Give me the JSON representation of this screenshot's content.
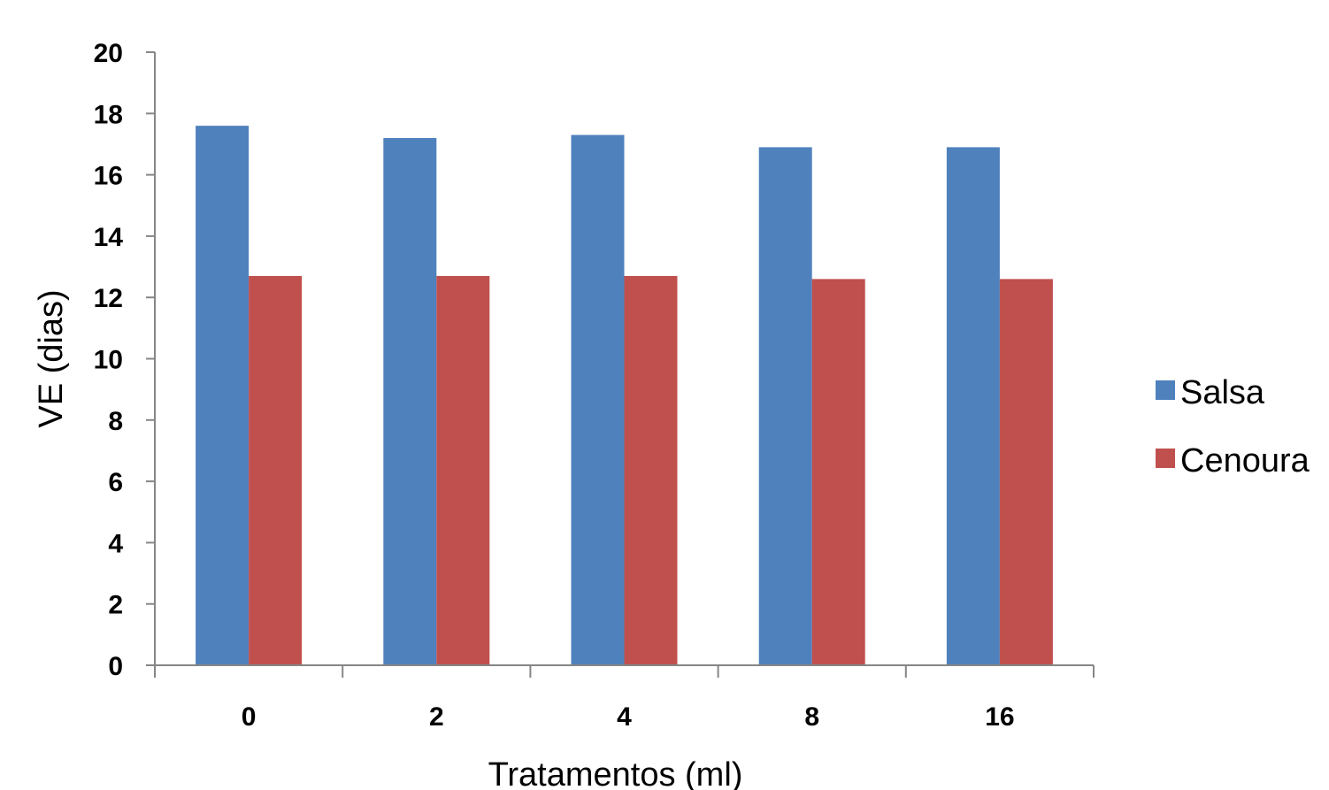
{
  "chart_data": {
    "type": "bar",
    "title": "",
    "xlabel": "Tratamentos  (ml)",
    "ylabel": "VE (dias)",
    "categories": [
      "0",
      "2",
      "4",
      "8",
      "16"
    ],
    "series": [
      {
        "name": "Salsa",
        "color": "#4F81BD",
        "values": [
          17.6,
          17.2,
          17.3,
          16.9,
          16.9
        ]
      },
      {
        "name": "Cenoura",
        "color": "#C0504D",
        "values": [
          12.7,
          12.7,
          12.7,
          12.6,
          12.6
        ]
      }
    ],
    "ylim": [
      0,
      20
    ],
    "yticks": [
      "0",
      "2",
      "4",
      "6",
      "8",
      "10",
      "12",
      "14",
      "16",
      "18",
      "20"
    ],
    "grid": false,
    "legend_position": "right"
  }
}
